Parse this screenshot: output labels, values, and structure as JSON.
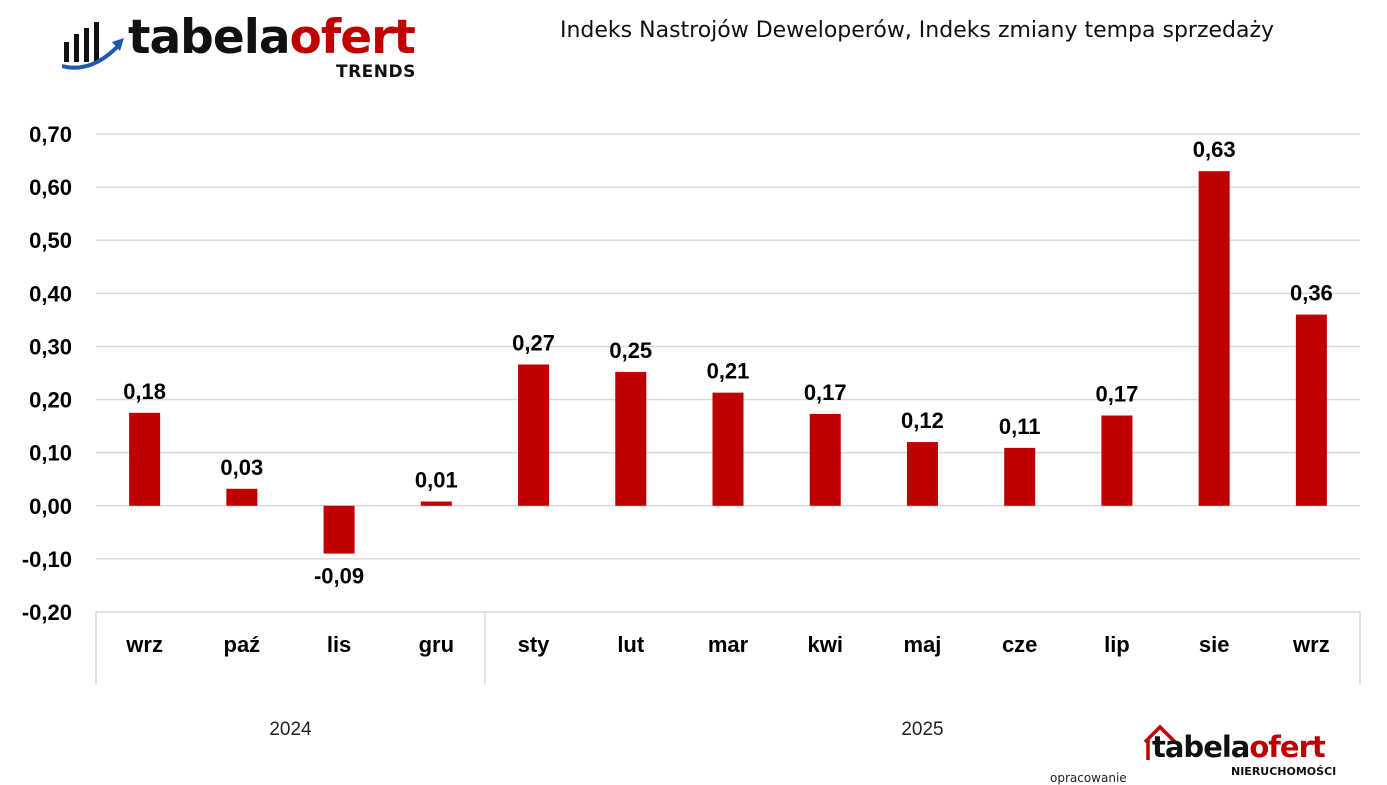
{
  "header": {
    "logo": {
      "word_part1": "tabela",
      "word_part2": "ofert",
      "sub": "TRENDS"
    },
    "title": "Indeks Nastrojów Deweloperów, Indeks zmiany tempa sprzedaży"
  },
  "footer": {
    "credit": "opracowanie",
    "logo": {
      "word_part1": "tabela",
      "word_part2": "ofert",
      "sub": "NIERUCHOMOŚCI"
    }
  },
  "colors": {
    "bar": "#c00000",
    "grid": "#d9d9d9",
    "brand_dark": "#111111",
    "brand_red": "#c00000",
    "logo_blue": "#1f5ba8"
  },
  "chart_data": {
    "type": "bar",
    "categories": [
      "wrz",
      "paź",
      "lis",
      "gru",
      "sty",
      "lut",
      "mar",
      "kwi",
      "maj",
      "cze",
      "lip",
      "sie",
      "wrz"
    ],
    "groups": [
      {
        "label": "2024",
        "count": 4
      },
      {
        "label": "2025",
        "count": 9
      }
    ],
    "values": [
      0.175,
      0.032,
      -0.09,
      0.008,
      0.266,
      0.252,
      0.213,
      0.173,
      0.12,
      0.109,
      0.17,
      0.63,
      0.36
    ],
    "data_labels": [
      "0,18",
      "0,03",
      "-0,09",
      "0,01",
      "0,27",
      "0,25",
      "0,21",
      "0,17",
      "0,12",
      "0,11",
      "0,17",
      "0,63",
      "0,36"
    ],
    "y_ticks": [
      -0.2,
      -0.1,
      0.0,
      0.1,
      0.2,
      0.3,
      0.4,
      0.5,
      0.6,
      0.7
    ],
    "y_tick_labels": [
      "-0,20",
      "-0,10",
      "0,00",
      "0,10",
      "0,20",
      "0,30",
      "0,40",
      "0,50",
      "0,60",
      "0,70"
    ],
    "ylim": [
      -0.2,
      0.7
    ],
    "grid": true,
    "legend": "none"
  }
}
